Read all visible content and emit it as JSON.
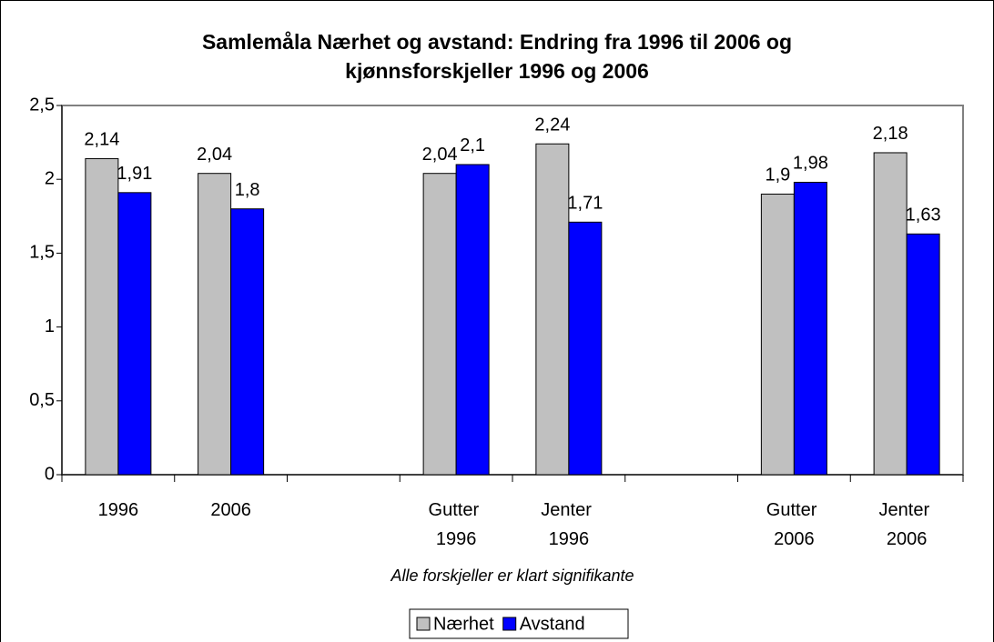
{
  "chart_data": {
    "type": "bar",
    "title": [
      "Samlemåla Nærhet og avstand: Endring fra 1996 til 2006 og",
      "kjønnsforskjeller 1996 og 2006"
    ],
    "annotation": "Alle forskjeller er klart signifikante",
    "categories": [
      "1996",
      "2006",
      null,
      "Gutter 1996",
      "Jenter 1996",
      null,
      "Gutter 2006",
      "Jenter 2006"
    ],
    "series": [
      {
        "name": "Nærhet",
        "color": "#c0c0c0",
        "values": [
          2.14,
          2.04,
          null,
          2.04,
          2.24,
          null,
          1.9,
          2.18
        ],
        "value_labels": [
          "2,14",
          "2,04",
          null,
          "2,04",
          "2,24",
          null,
          "1,9",
          "2,18"
        ]
      },
      {
        "name": "Avstand",
        "color": "#0000ff",
        "values": [
          1.91,
          1.8,
          null,
          2.1,
          1.71,
          null,
          1.98,
          1.63
        ],
        "value_labels": [
          "1,91",
          "1,8",
          null,
          "2,1",
          "1,71",
          null,
          "1,98",
          "1,63"
        ]
      }
    ],
    "ylim": [
      0,
      2.5
    ],
    "yticks": [
      0,
      {
        "value": 0.5,
        "label": "0,5"
      },
      1,
      {
        "value": 1.5,
        "label": "1,5"
      },
      2,
      {
        "value": 2.5,
        "label": "2,5"
      }
    ],
    "legend": "bottom"
  }
}
